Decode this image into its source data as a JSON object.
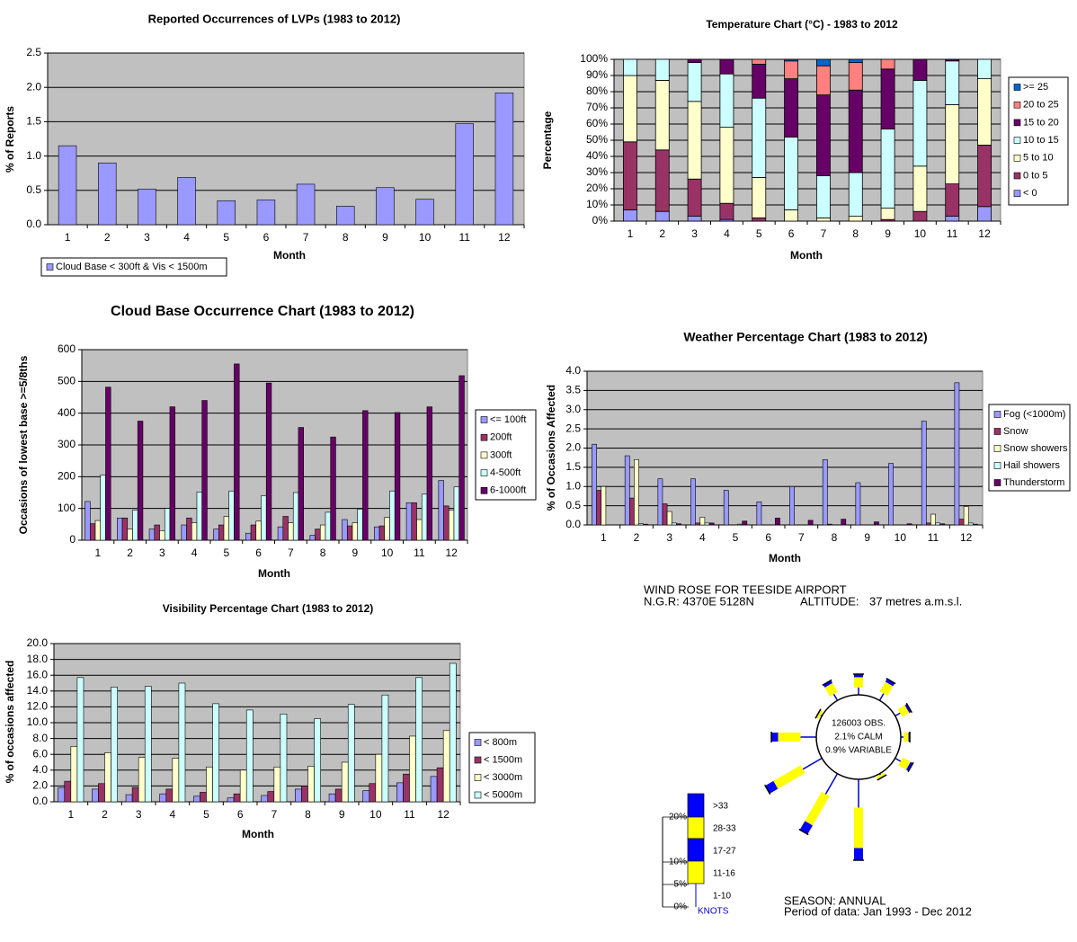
{
  "chart_data": [
    {
      "type": "bar",
      "title": "Reported Occurrences of LVPs (1983 to 2012)",
      "ylabel": "% of Reports",
      "xlabel": "Month",
      "categories": [
        "1",
        "2",
        "3",
        "4",
        "5",
        "6",
        "7",
        "8",
        "9",
        "10",
        "11",
        "12"
      ],
      "series": [
        {
          "name": "Cloud Base < 300ft & Vis < 1500m",
          "color": "#9999ff",
          "values": [
            1.15,
            0.9,
            0.52,
            0.69,
            0.35,
            0.36,
            0.59,
            0.27,
            0.54,
            0.37,
            1.47,
            1.92
          ]
        }
      ],
      "ylim": [
        0,
        2.5
      ],
      "yticks": [
        {
          "value": 0,
          "label": "0.0"
        },
        0.5,
        {
          "value": 1,
          "label": "1.0"
        },
        1.5,
        {
          "value": 2,
          "label": "2.0"
        },
        2.5
      ],
      "grid": true
    },
    {
      "type": "bar",
      "stacked": true,
      "title": "Temperature Chart (°C) - 1983 to 2012",
      "ylabel": "Percentage",
      "xlabel": "Month",
      "categories": [
        "1",
        "2",
        "3",
        "4",
        "5",
        "6",
        "7",
        "8",
        "9",
        "10",
        "11",
        "12"
      ],
      "series": [
        {
          "name": "< 0",
          "color": "#9999ff",
          "values": [
            7,
            6,
            3,
            1,
            0,
            0,
            0,
            0,
            0,
            0,
            3,
            9
          ]
        },
        {
          "name": "0 to 5",
          "color": "#993366",
          "values": [
            42,
            38,
            23,
            10,
            2,
            0,
            0,
            0,
            1,
            6,
            20,
            38
          ]
        },
        {
          "name": "5 to 10",
          "color": "#ffffcc",
          "values": [
            41,
            43,
            48,
            47,
            25,
            7,
            2,
            3,
            7,
            28,
            49,
            41
          ]
        },
        {
          "name": "10 to 15",
          "color": "#ccffff",
          "values": [
            10,
            13,
            24,
            33,
            49,
            45,
            26,
            27,
            49,
            53,
            27,
            12
          ]
        },
        {
          "name": "15 to 20",
          "color": "#660066",
          "values": [
            0,
            0,
            2,
            9,
            21,
            36,
            50,
            51,
            37,
            13,
            1,
            0
          ]
        },
        {
          "name": "20 to 25",
          "color": "#ff8080",
          "values": [
            0,
            0,
            0,
            0,
            3,
            11,
            18,
            17,
            6,
            0,
            0,
            0
          ]
        },
        {
          "name": ">= 25",
          "color": "#0066cc",
          "values": [
            0,
            0,
            0,
            0,
            0,
            1,
            4,
            2,
            0,
            0,
            0,
            0
          ]
        }
      ],
      "ylim": [
        0,
        100
      ],
      "yticks": [
        {
          "value": 0,
          "label": "0%"
        },
        {
          "value": 10,
          "label": "10%"
        },
        {
          "value": 20,
          "label": "20%"
        },
        {
          "value": 30,
          "label": "30%"
        },
        {
          "value": 40,
          "label": "40%"
        },
        {
          "value": 50,
          "label": "50%"
        },
        {
          "value": 60,
          "label": "60%"
        },
        {
          "value": 70,
          "label": "70%"
        },
        {
          "value": 80,
          "label": "80%"
        },
        {
          "value": 90,
          "label": "90%"
        },
        {
          "value": 100,
          "label": "100%"
        }
      ],
      "grid": true
    },
    {
      "type": "bar",
      "title": "Cloud Base Occurrence Chart (1983 to 2012)",
      "ylabel": "Occasions of lowest base >=5/8ths",
      "xlabel": "Month",
      "categories": [
        "1",
        "2",
        "3",
        "4",
        "5",
        "6",
        "7",
        "8",
        "9",
        "10",
        "11",
        "12"
      ],
      "series": [
        {
          "name": "<= 100ft",
          "color": "#9999ff",
          "values": [
            122,
            70,
            35,
            48,
            35,
            22,
            42,
            15,
            65,
            42,
            118,
            188
          ]
        },
        {
          "name": "200ft",
          "color": "#993366",
          "values": [
            52,
            70,
            48,
            70,
            48,
            48,
            75,
            35,
            45,
            45,
            118,
            108
          ]
        },
        {
          "name": "300ft",
          "color": "#ffffcc",
          "values": [
            62,
            35,
            30,
            55,
            75,
            60,
            55,
            48,
            55,
            72,
            65,
            95
          ]
        },
        {
          "name": "4-500ft",
          "color": "#ccffff",
          "values": [
            205,
            95,
            100,
            152,
            155,
            140,
            150,
            88,
            98,
            155,
            145,
            168
          ]
        },
        {
          "name": "6-1000ft",
          "color": "#660066",
          "values": [
            482,
            375,
            420,
            440,
            555,
            495,
            355,
            325,
            408,
            402,
            420,
            518
          ]
        }
      ],
      "ylim": [
        0,
        600
      ],
      "yticks": [
        0,
        100,
        200,
        300,
        400,
        500,
        600
      ],
      "grid": true
    },
    {
      "type": "bar",
      "title": "Weather Percentage Chart (1983 to 2012)",
      "ylabel": "% of Occasions Affected",
      "xlabel": "Month",
      "categories": [
        "1",
        "2",
        "3",
        "4",
        "5",
        "6",
        "7",
        "8",
        "9",
        "10",
        "11",
        "12"
      ],
      "series": [
        {
          "name": "Fog (<1000m)",
          "color": "#9999ff",
          "values": [
            2.1,
            1.8,
            1.2,
            1.2,
            0.9,
            0.6,
            1.0,
            1.7,
            1.1,
            1.6,
            2.7,
            3.7
          ]
        },
        {
          "name": "Snow",
          "color": "#993366",
          "values": [
            0.9,
            0.7,
            0.55,
            0.05,
            0,
            0,
            0,
            0.02,
            0,
            0,
            0.05,
            0.15
          ]
        },
        {
          "name": "Snow showers",
          "color": "#ffffcc",
          "values": [
            1.0,
            1.7,
            0.35,
            0.2,
            0,
            0,
            0,
            0,
            0,
            0,
            0.28,
            0.48
          ]
        },
        {
          "name": "Hail showers",
          "color": "#ccffff",
          "values": [
            0,
            0.03,
            0.05,
            0.05,
            0.02,
            0,
            0,
            0,
            0,
            0,
            0.05,
            0.05
          ]
        },
        {
          "name": "Thunderstorm",
          "color": "#660066",
          "values": [
            0,
            0.02,
            0.03,
            0.05,
            0.1,
            0.18,
            0.12,
            0.15,
            0.08,
            0.03,
            0.03,
            0.02
          ]
        }
      ],
      "ylim": [
        0,
        4
      ],
      "yticks": [
        {
          "value": 0,
          "label": "0.0"
        },
        0.5,
        {
          "value": 1,
          "label": "1.0"
        },
        1.5,
        {
          "value": 2,
          "label": "2.0"
        },
        2.5,
        {
          "value": 3,
          "label": "3.0"
        },
        3.5,
        {
          "value": 4,
          "label": "4.0"
        }
      ],
      "grid": true
    },
    {
      "type": "bar",
      "title": "Visibility Percentage Chart (1983 to 2012)",
      "ylabel": "% of occasions affected",
      "xlabel": "Month",
      "categories": [
        "1",
        "2",
        "3",
        "4",
        "5",
        "6",
        "7",
        "8",
        "9",
        "10",
        "11",
        "12"
      ],
      "series": [
        {
          "name": "< 800m",
          "color": "#9999ff",
          "values": [
            1.8,
            1.6,
            0.9,
            1.0,
            0.7,
            0.5,
            0.8,
            1.6,
            1.0,
            1.4,
            2.4,
            3.2
          ]
        },
        {
          "name": "< 1500m",
          "color": "#993366",
          "values": [
            2.6,
            2.3,
            1.8,
            1.6,
            1.2,
            1.0,
            1.3,
            2.0,
            1.6,
            2.3,
            3.5,
            4.3
          ]
        },
        {
          "name": "< 3000m",
          "color": "#ffffcc",
          "values": [
            7.0,
            6.2,
            5.6,
            5.5,
            4.4,
            4.0,
            4.4,
            4.5,
            5.0,
            6.0,
            8.3,
            9.0
          ]
        },
        {
          "name": "< 5000m",
          "color": "#ccffff",
          "values": [
            15.7,
            14.5,
            14.6,
            15.0,
            12.4,
            11.6,
            11.1,
            10.5,
            12.3,
            13.5,
            15.7,
            17.5
          ]
        }
      ],
      "ylim": [
        0,
        20
      ],
      "yticks": [
        {
          "value": 0,
          "label": "0.0"
        },
        {
          "value": 2,
          "label": "2.0"
        },
        {
          "value": 4,
          "label": "4.0"
        },
        {
          "value": 6,
          "label": "6.0"
        },
        {
          "value": 8,
          "label": "8.0"
        },
        {
          "value": 10,
          "label": "10.0"
        },
        {
          "value": 12,
          "label": "12.0"
        },
        {
          "value": 14,
          "label": "14.0"
        },
        {
          "value": 16,
          "label": "16.0"
        },
        {
          "value": 18,
          "label": "18.0"
        },
        {
          "value": 20,
          "label": "20.0"
        }
      ],
      "grid": true
    },
    {
      "type": "windrose",
      "title": "WIND ROSE FOR TEESIDE AIRPORT",
      "ngr": "N.G.R: 4370E 5128N",
      "altitude_label": "ALTITUDE:",
      "altitude": "37 metres a.m.s.l.",
      "center_text": [
        "126003 OBS.",
        "2.1% CALM",
        "0.9% VARIABLE"
      ],
      "values": [
        4.6,
        5,
        3.6,
        2,
        4,
        1,
        18,
        15,
        14,
        10,
        1,
        4.6
      ],
      "scale_ticks": [
        {
          "value": 20,
          "label": "20%"
        },
        {
          "value": 10,
          "label": "10%"
        },
        {
          "value": 5,
          "label": "5%"
        },
        {
          "value": 0,
          "label": "0%"
        }
      ],
      "speed_classes": [
        ">33",
        "28-33",
        "17-27",
        "11-16",
        "1-10"
      ],
      "units": "KNOTS",
      "season": "SEASON:  ANNUAL",
      "period": "Period of data: Jan 1993 - Dec 2012"
    }
  ]
}
